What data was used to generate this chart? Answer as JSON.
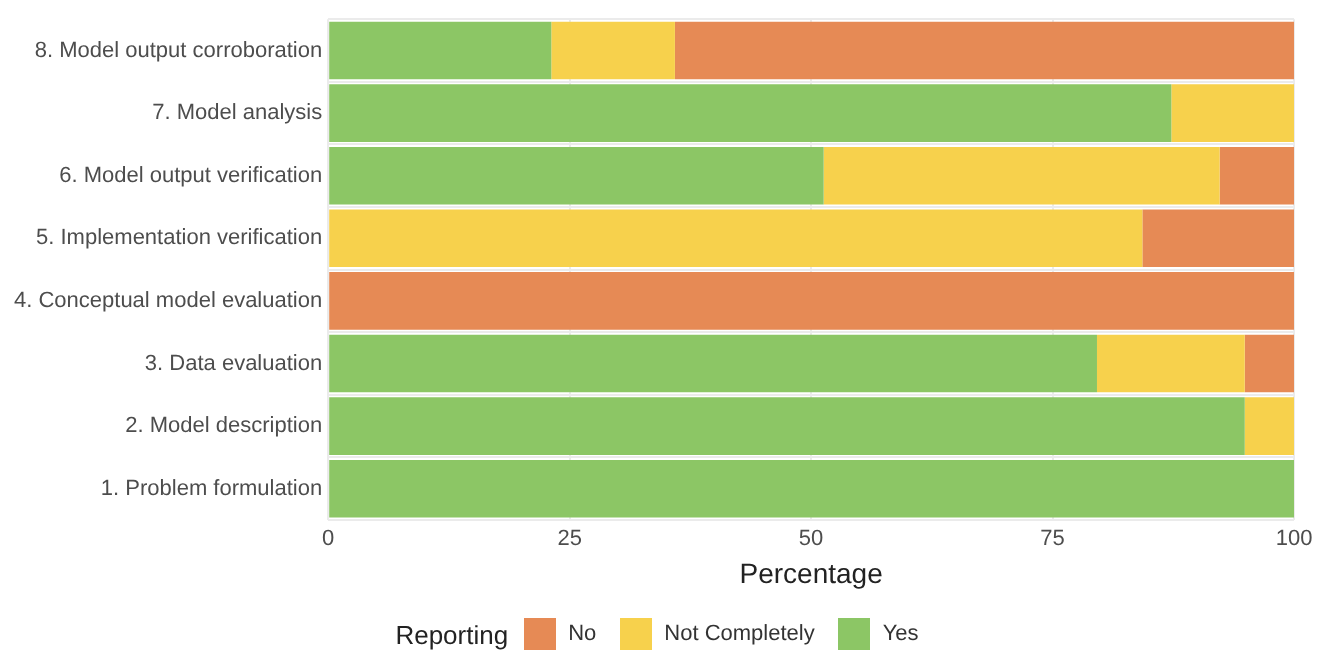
{
  "chart_data": {
    "type": "bar",
    "orientation": "horizontal",
    "stacked": true,
    "xlabel": "Percentage",
    "legend_title": "Reporting",
    "legend": "bottom",
    "categories": [
      "8. Model output corroboration",
      "7. Model analysis",
      "6. Model output verification",
      "5. Implementation verification",
      "4. Conceptual model evaluation",
      "3. Data evaluation",
      "2. Model description",
      "1. Problem formulation"
    ],
    "series": [
      {
        "name": "Yes",
        "color": "#8cc665",
        "values": [
          23.1,
          87.3,
          51.3,
          0,
          0,
          79.6,
          94.9,
          100
        ]
      },
      {
        "name": "Not Completely",
        "color": "#f7d14c",
        "values": [
          12.8,
          12.7,
          41.0,
          84.3,
          0,
          15.3,
          5.1,
          0
        ]
      },
      {
        "name": "No",
        "color": "#e68a55",
        "values": [
          64.1,
          0,
          7.7,
          15.7,
          100,
          5.1,
          0,
          0
        ]
      }
    ],
    "xlim": [
      0,
      100
    ],
    "xticks": [
      0,
      25,
      50,
      75,
      100
    ],
    "grid": true
  }
}
